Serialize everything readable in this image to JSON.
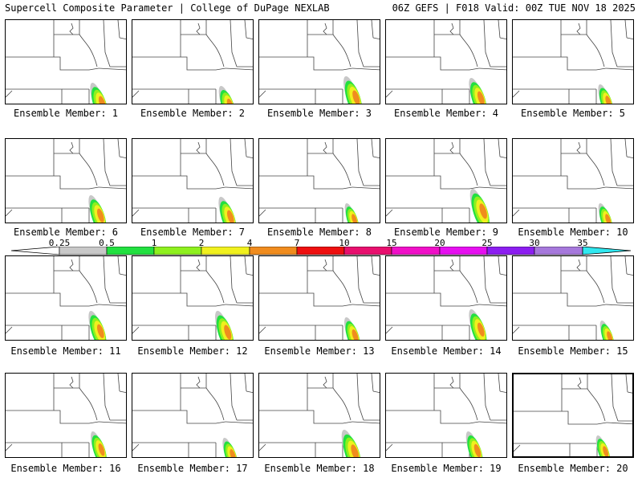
{
  "header": {
    "left": "Supercell Composite Parameter | College of DuPage NEXLAB",
    "right": "06Z GEFS | F018 Valid: 00Z TUE NOV 18 2025"
  },
  "legend": {
    "ticks": [
      "0.25",
      "0.5",
      "1",
      "2",
      "4",
      "7",
      "10",
      "15",
      "20",
      "25",
      "30",
      "35"
    ],
    "colors": [
      "#c8c8c8",
      "#22e040",
      "#8ef01e",
      "#f0f01e",
      "#f08c1e",
      "#ee1010",
      "#e8106e",
      "#f010c8",
      "#e610f0",
      "#8c1ef0",
      "#a678dc",
      "#30e8f0"
    ]
  },
  "members": [
    {
      "label": "Ensemble Member: 1"
    },
    {
      "label": "Ensemble Member: 2"
    },
    {
      "label": "Ensemble Member: 3"
    },
    {
      "label": "Ensemble Member: 4"
    },
    {
      "label": "Ensemble Member: 5"
    },
    {
      "label": "Ensemble Member: 6"
    },
    {
      "label": "Ensemble Member: 7"
    },
    {
      "label": "Ensemble Member: 8"
    },
    {
      "label": "Ensemble Member: 9"
    },
    {
      "label": "Ensemble Member: 10"
    },
    {
      "label": "Ensemble Member: 11"
    },
    {
      "label": "Ensemble Member: 12"
    },
    {
      "label": "Ensemble Member: 13"
    },
    {
      "label": "Ensemble Member: 14"
    },
    {
      "label": "Ensemble Member: 15"
    },
    {
      "label": "Ensemble Member: 16"
    },
    {
      "label": "Ensemble Member: 17"
    },
    {
      "label": "Ensemble Member: 18"
    },
    {
      "label": "Ensemble Member: 19"
    },
    {
      "label": "Ensemble Member: 20"
    }
  ]
}
